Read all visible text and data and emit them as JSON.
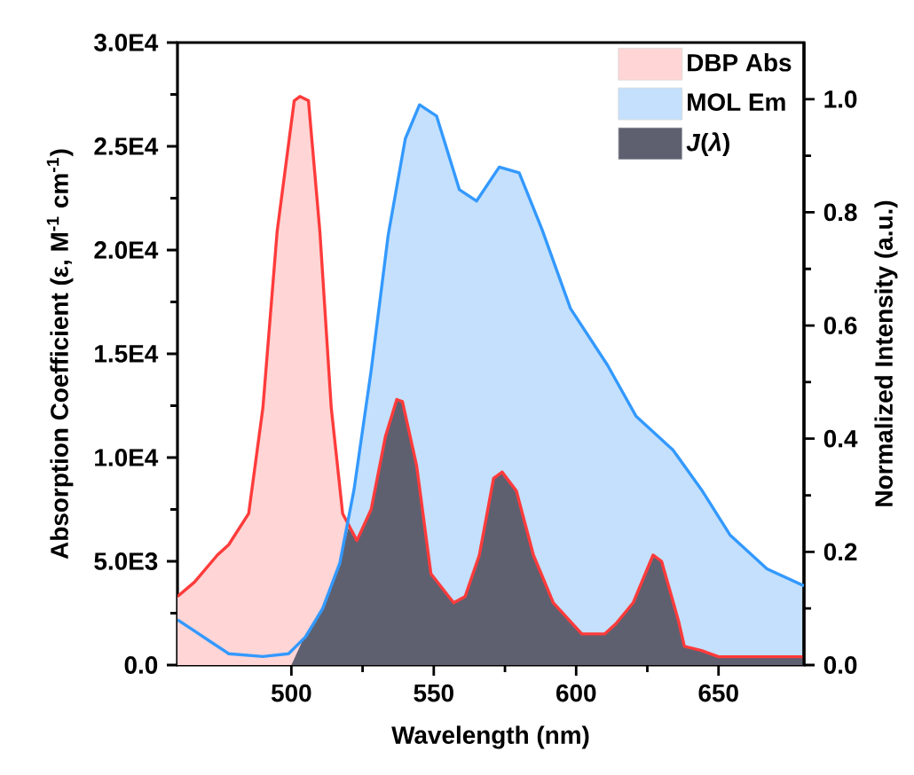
{
  "chart_data": {
    "type": "area",
    "xlabel": "Wavelength (nm)",
    "ylabel": "Absorption Coefficient (ε, M$^{-1}$ cm$^{-1}$)",
    "y2label": "Normalized Intensity (a.u.)",
    "xlim": [
      460,
      680
    ],
    "xticks": [
      500,
      550,
      600,
      650
    ],
    "ylim": [
      0,
      30000
    ],
    "yticks": [
      {
        "value": 0,
        "label": "0.0"
      },
      {
        "value": 5000,
        "label": "5.0E3"
      },
      {
        "value": 10000,
        "label": "1.0E4"
      },
      {
        "value": 15000,
        "label": "1.5E4"
      },
      {
        "value": 20000,
        "label": "2.0E4"
      },
      {
        "value": 25000,
        "label": "2.5E4"
      },
      {
        "value": 30000,
        "label": "3.0E4"
      }
    ],
    "y2lim": [
      0,
      1.1
    ],
    "y2ticks": [
      {
        "value": 0,
        "label": "0.0"
      },
      {
        "value": 0.2,
        "label": "0.2"
      },
      {
        "value": 0.4,
        "label": "0.4"
      },
      {
        "value": 0.6,
        "label": "0.6"
      },
      {
        "value": 0.8,
        "label": "0.8"
      },
      {
        "value": 1.0,
        "label": "1.0"
      }
    ],
    "legend": "top right",
    "series": [
      {
        "name": "DBP Abs",
        "color": "#ffd5d5",
        "x": [
          460,
          466,
          474,
          478,
          485,
          490,
          495,
          501,
          503,
          506,
          510,
          514,
          518,
          523,
          528,
          533,
          537,
          539,
          544,
          549,
          557,
          561,
          566,
          571,
          574,
          579,
          585,
          592,
          602,
          610,
          614,
          620,
          627,
          630,
          636,
          638,
          644,
          650,
          680
        ],
        "values": [
          3300,
          4000,
          5300,
          5800,
          7300,
          12400,
          20900,
          27200,
          27400,
          27200,
          20900,
          12400,
          7300,
          6000,
          7500,
          11000,
          12800,
          12700,
          9600,
          4400,
          3000,
          3300,
          5300,
          9000,
          9300,
          8400,
          5300,
          3000,
          1500,
          1500,
          2000,
          3000,
          5300,
          5000,
          2100,
          900,
          700,
          400,
          400
        ]
      },
      {
        "name": "MOL Em",
        "axis": "y2",
        "color": "#c4e0fc",
        "x": [
          460,
          466,
          472,
          478,
          490,
          499,
          505,
          511,
          517,
          522,
          528,
          534,
          540,
          545,
          551,
          559,
          565,
          573,
          580,
          588,
          598,
          611,
          621,
          634,
          644,
          654,
          667,
          680
        ],
        "values": [
          0.08,
          0.06,
          0.04,
          0.02,
          0.015,
          0.02,
          0.05,
          0.1,
          0.18,
          0.31,
          0.52,
          0.76,
          0.93,
          0.99,
          0.97,
          0.84,
          0.82,
          0.88,
          0.87,
          0.77,
          0.63,
          0.53,
          0.44,
          0.38,
          0.31,
          0.23,
          0.17,
          0.14
        ]
      },
      {
        "name": "*J*(*λ*)",
        "color": "#5e6070",
        "x": [
          500,
          505,
          511,
          517,
          520,
          523,
          528,
          533,
          537,
          539,
          544,
          549,
          557,
          561,
          566,
          571,
          574,
          579,
          585,
          592,
          602,
          610,
          614,
          620,
          627,
          630,
          636,
          638,
          644,
          650,
          680
        ],
        "values": [
          0,
          1500,
          2700,
          5000,
          6600,
          6000,
          7500,
          11000,
          12800,
          12700,
          9600,
          4400,
          3000,
          3300,
          5300,
          9000,
          9300,
          8400,
          5300,
          3000,
          1500,
          1500,
          2000,
          3000,
          5300,
          5000,
          2100,
          900,
          700,
          400,
          400
        ]
      }
    ]
  }
}
